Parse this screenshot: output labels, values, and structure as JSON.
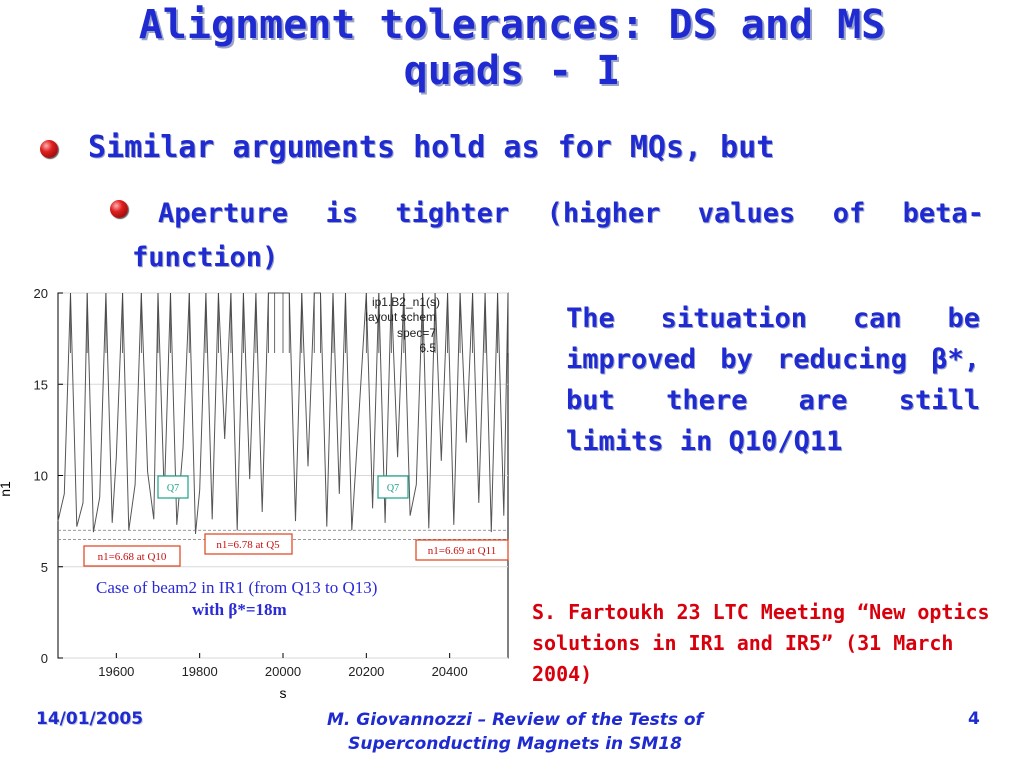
{
  "slide": {
    "title_line1": "Alignment tolerances: DS and MS",
    "title_line2": "quads - I",
    "bullet1": "Similar arguments hold as for MQs, but",
    "bullet2_words": [
      "Aperture",
      "is",
      "tighter",
      "(higher",
      "values",
      "of",
      "beta-"
    ],
    "bullet2_line2": "function)",
    "right_text": "The situation can be improved by reducing β*, but there are still limits in Q10/Q11",
    "reference": "S. Fartoukh 23 LTC Meeting “New optics solutions in IR1 and IR5” (31 March 2004)"
  },
  "footer": {
    "date": "14/01/2005",
    "center_line1": "M. Giovannozzi – Review of the Tests of",
    "center_line2": "Superconducting Magnets in SM18",
    "page": "4"
  },
  "chart_data": {
    "type": "line",
    "xlabel": "s",
    "ylabel": "n1",
    "xlim": [
      19460,
      20540
    ],
    "ylim": [
      0,
      20
    ],
    "xticks": [
      "19600",
      "19800",
      "20000",
      "20200",
      "20400"
    ],
    "yticks": [
      "0",
      "5",
      "10",
      "15",
      "20"
    ],
    "legend": [
      "ip1.B2_n1(s)",
      "layout schem",
      "spec=7",
      "6.5"
    ],
    "legend_position": "top-right",
    "reference_lines": [
      7,
      6.5
    ],
    "annotations": {
      "q7_left": "Q7",
      "q7_right": "Q7",
      "q10": "n1=6.68 at Q10",
      "q5": "n1=6.78 at Q5",
      "q11": "n1=6.69 at Q11",
      "case": "Case of beam2 in IR1 (from Q13 to Q13)",
      "beta": "with  β*=18m"
    },
    "series": [
      {
        "x": [
          19460,
          19475,
          19490,
          19505,
          19520,
          19530,
          19545,
          19560,
          19575,
          19590,
          19600,
          19615,
          19630,
          19645,
          19660,
          19675,
          19690,
          19700,
          19715,
          19730,
          19745,
          19760,
          19775,
          19790,
          19800,
          19815,
          19830,
          19845,
          19860,
          19875,
          19890,
          19905,
          19920,
          19935,
          19950,
          19965,
          19980,
          20000,
          20015,
          20030,
          20045,
          20060,
          20075,
          20090,
          20105,
          20120,
          20135,
          20150,
          20165,
          20180,
          20200,
          20215,
          20230,
          20245,
          20260,
          20275,
          20290,
          20305,
          20320,
          20335,
          20350,
          20365,
          20380,
          20395,
          20410,
          20425,
          20440,
          20455,
          20470,
          20485,
          20500,
          20515,
          20530,
          20540
        ],
        "y": [
          7.5,
          9.0,
          20,
          7.2,
          8.5,
          20,
          6.9,
          8.8,
          20,
          7.4,
          11.0,
          20,
          7.0,
          9.5,
          20,
          10.2,
          7.6,
          20,
          8.8,
          20,
          7.3,
          11.5,
          20,
          6.8,
          9.2,
          20,
          7.6,
          20,
          12.0,
          20,
          7.0,
          20,
          9.8,
          20,
          8.0,
          20,
          20,
          20,
          20,
          7.5,
          20,
          10.5,
          20,
          20,
          7.2,
          20,
          9.0,
          20,
          7.0,
          12.5,
          20,
          8.2,
          20,
          7.4,
          20,
          11.0,
          20,
          7.8,
          9.5,
          20,
          7.1,
          20,
          10.8,
          20,
          7.3,
          20,
          11.8,
          20,
          8.5,
          20,
          6.9,
          20,
          7.8,
          20
        ]
      }
    ]
  }
}
